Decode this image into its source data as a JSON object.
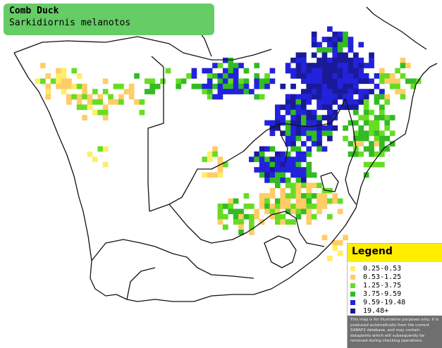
{
  "map": {
    "title_common": "Comb Duck",
    "title_scientific": "Sarkidiornis melanotos"
  },
  "legend": {
    "title": "Legend",
    "classes": [
      {
        "label": "0.25-0.53",
        "color": "#ffee66"
      },
      {
        "label": "0.53-1.25",
        "color": "#ffcc66"
      },
      {
        "label": "1.25-3.75",
        "color": "#66dd22"
      },
      {
        "label": "3.75-9.59",
        "color": "#33bb22"
      },
      {
        "label": "9.59-19.48",
        "color": "#2222dd"
      },
      {
        "label": "19.48+",
        "color": "#1a1a99"
      }
    ],
    "disclaimer": "This map is for illustrative purposes only; it is produced automatically from the current SABAP2 database, and may contain datapoints which will subsequently be removed during checking operations."
  },
  "colors": {
    "title_box": "#66cc66",
    "legend_header": "#ffee00",
    "background": "#ffffff",
    "boundary": "#111111"
  }
}
